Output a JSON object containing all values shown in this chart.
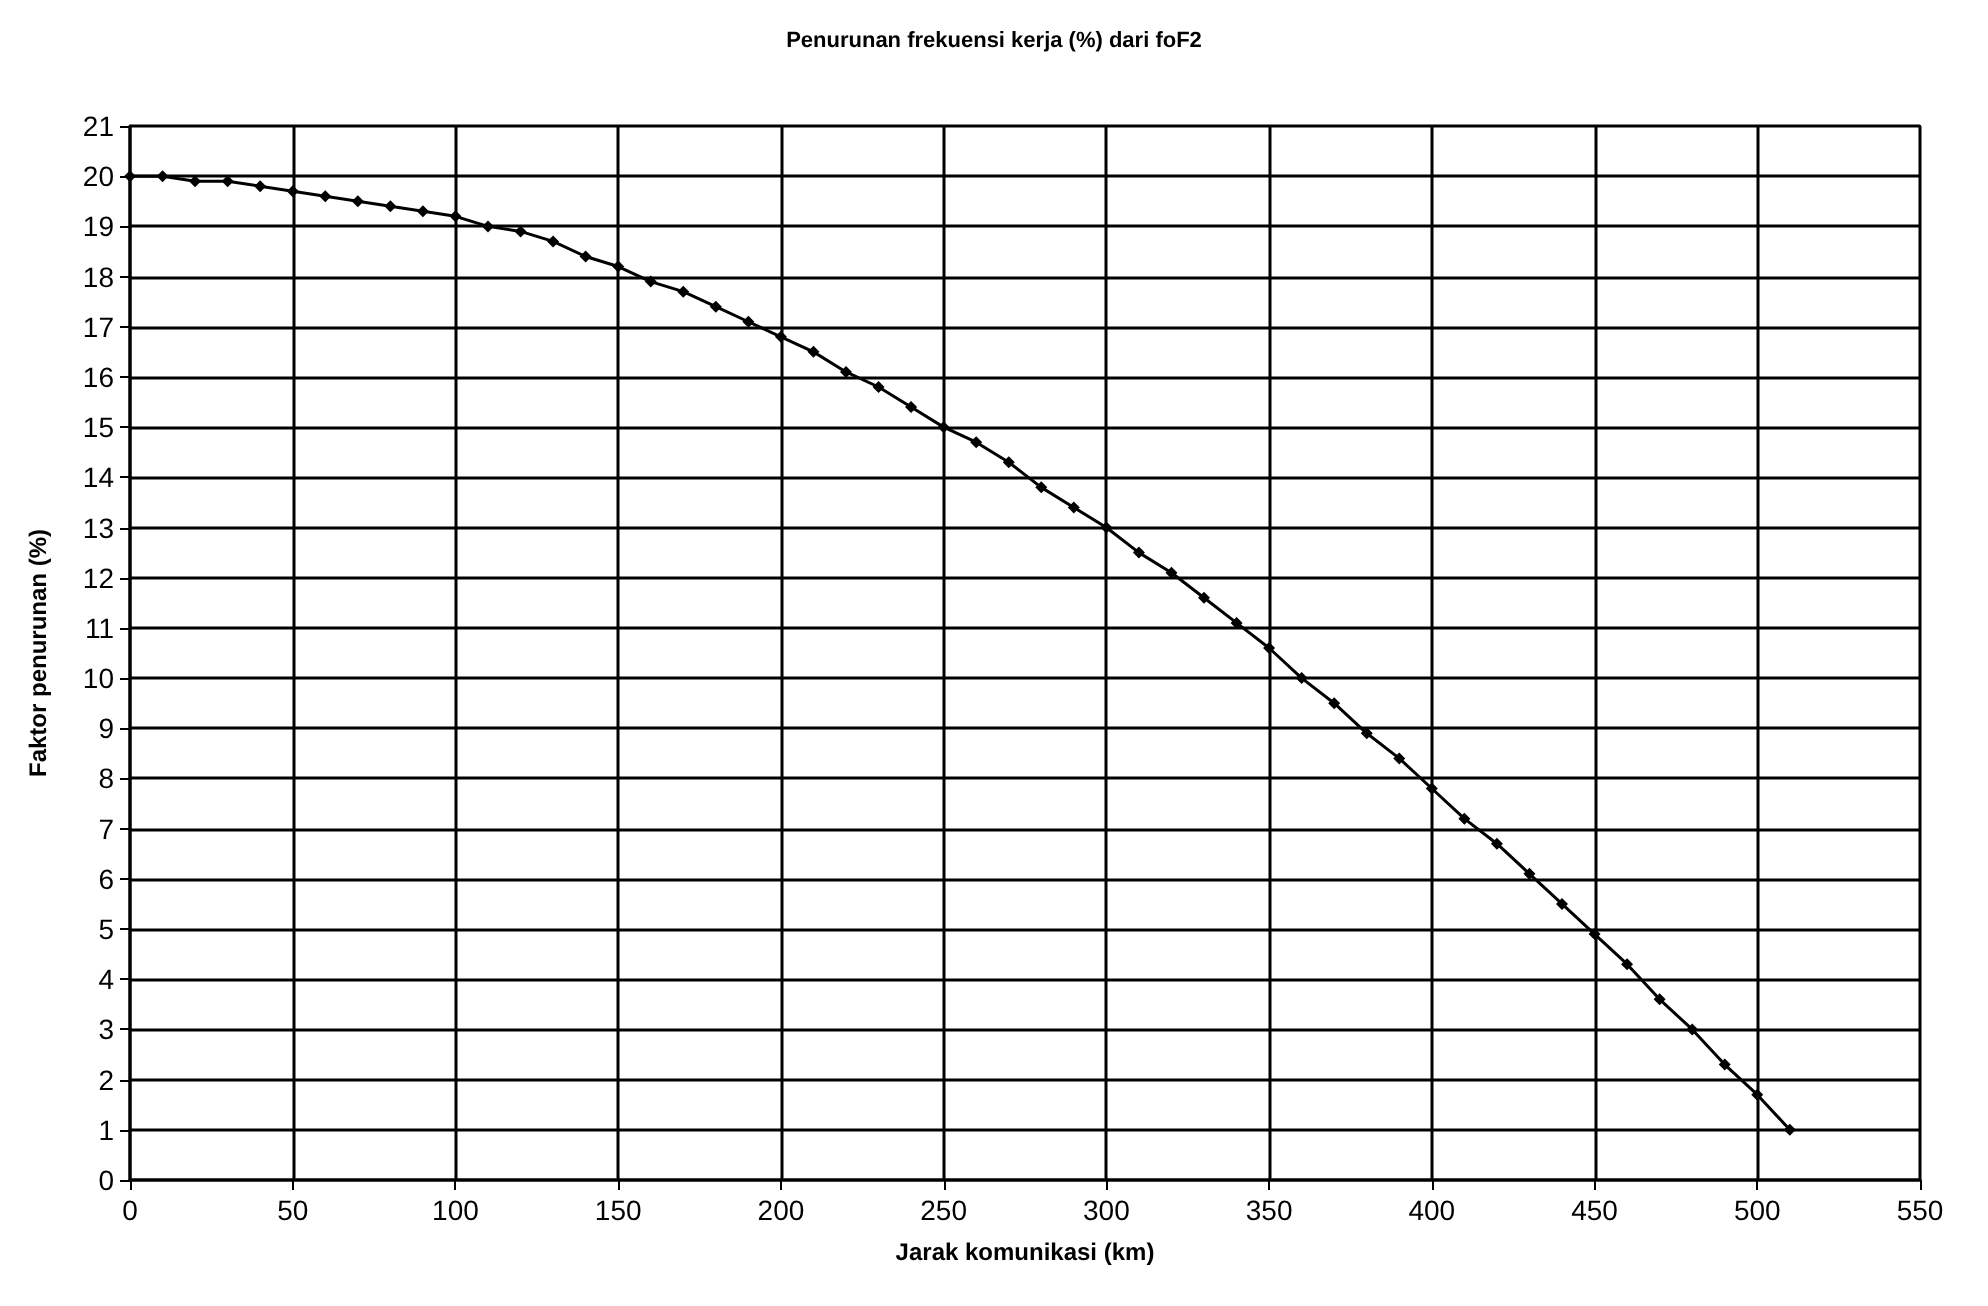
{
  "chart_data": {
    "type": "line",
    "title": "Penurunan frekuensi kerja (%) dari foF2",
    "xlabel": "Jarak komunikasi (km)",
    "ylabel": "Faktor penurunan (%)",
    "x": [
      0,
      10,
      20,
      30,
      40,
      50,
      60,
      70,
      80,
      90,
      100,
      110,
      120,
      130,
      140,
      150,
      160,
      170,
      180,
      190,
      200,
      210,
      220,
      230,
      240,
      250,
      260,
      270,
      280,
      290,
      300,
      310,
      320,
      330,
      340,
      350,
      360,
      370,
      380,
      390,
      400,
      410,
      420,
      430,
      440,
      450,
      460,
      470,
      480,
      490,
      500,
      510
    ],
    "series": [
      {
        "color": "#000000",
        "values": [
          20,
          20,
          19.9,
          19.9,
          19.8,
          19.7,
          19.6,
          19.5,
          19.4,
          19.3,
          19.2,
          19.0,
          18.9,
          18.7,
          18.4,
          18.2,
          17.9,
          17.7,
          17.4,
          17.1,
          16.8,
          16.5,
          16.1,
          15.8,
          15.4,
          15.0,
          14.7,
          14.3,
          13.8,
          13.4,
          13.0,
          12.5,
          12.1,
          11.6,
          11.1,
          10.6,
          10.0,
          9.5,
          8.9,
          8.4,
          7.8,
          7.2,
          6.7,
          6.1,
          5.5,
          4.9,
          4.3,
          3.6,
          3.0,
          2.3,
          1.7,
          1.0
        ]
      }
    ],
    "xlim": [
      0,
      550
    ],
    "xticks": [
      0,
      50,
      100,
      150,
      200,
      250,
      300,
      350,
      400,
      450,
      500,
      550
    ],
    "ylim": [
      0,
      21
    ],
    "yticks": [
      0,
      1,
      2,
      3,
      4,
      5,
      6,
      7,
      8,
      9,
      10,
      11,
      12,
      13,
      14,
      15,
      16,
      17,
      18,
      19,
      20,
      21
    ],
    "grid": true,
    "marker": "diamond",
    "line_style": "solid"
  }
}
